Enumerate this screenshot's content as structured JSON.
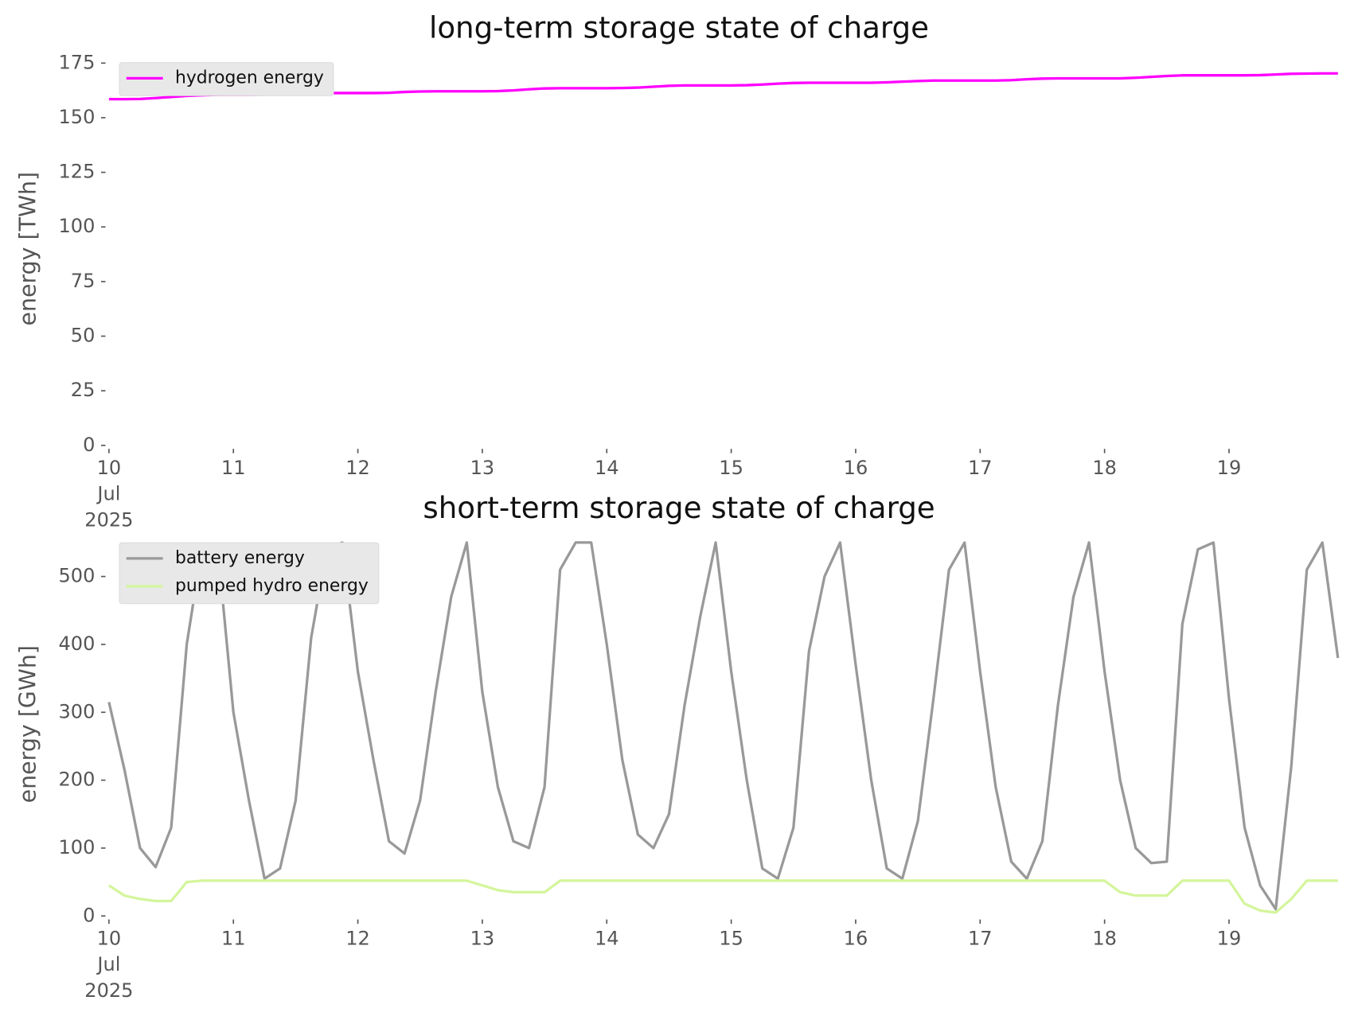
{
  "chart_data": [
    {
      "type": "line",
      "title": "long-term storage state of charge",
      "ylabel": "energy [TWh]",
      "x": [
        10,
        10.125,
        10.25,
        10.375,
        10.5,
        10.625,
        10.75,
        10.875,
        11,
        11.125,
        11.25,
        11.375,
        11.5,
        11.625,
        11.75,
        11.875,
        12,
        12.125,
        12.25,
        12.375,
        12.5,
        12.625,
        12.75,
        12.875,
        13,
        13.125,
        13.25,
        13.375,
        13.5,
        13.625,
        13.75,
        13.875,
        14,
        14.125,
        14.25,
        14.375,
        14.5,
        14.625,
        14.75,
        14.875,
        15,
        15.125,
        15.25,
        15.375,
        15.5,
        15.625,
        15.75,
        15.875,
        16,
        16.125,
        16.25,
        16.375,
        16.5,
        16.625,
        16.75,
        16.875,
        17,
        17.125,
        17.25,
        17.375,
        17.5,
        17.625,
        17.75,
        17.875,
        18,
        18.125,
        18.25,
        18.375,
        18.5,
        18.625,
        18.75,
        18.875,
        19,
        19.125,
        19.25,
        19.375,
        19.5,
        19.625,
        19.75,
        19.875
      ],
      "xlim": [
        10,
        20
      ],
      "xticks": [
        {
          "value": 10,
          "label": "10 Jul 2025"
        },
        11,
        12,
        13,
        14,
        15,
        16,
        17,
        18,
        19
      ],
      "ylim": [
        0,
        180
      ],
      "yticks": [
        0,
        25,
        50,
        75,
        100,
        125,
        150,
        175
      ],
      "legend": "upper left",
      "series": [
        {
          "name": "hydrogen energy",
          "color": "#ff00ff",
          "values": [
            158.5,
            158.5,
            158.6,
            159.0,
            159.5,
            160.0,
            160.3,
            160.5,
            160.5,
            160.5,
            160.6,
            161.0,
            161.2,
            161.3,
            161.3,
            161.3,
            161.3,
            161.3,
            161.4,
            161.8,
            162.0,
            162.1,
            162.1,
            162.1,
            162.1,
            162.2,
            162.5,
            163.0,
            163.4,
            163.5,
            163.5,
            163.5,
            163.5,
            163.6,
            163.8,
            164.2,
            164.6,
            164.8,
            164.8,
            164.8,
            164.8,
            164.9,
            165.2,
            165.6,
            165.9,
            166.0,
            166.0,
            166.0,
            166.0,
            166.0,
            166.2,
            166.5,
            166.8,
            167.0,
            167.0,
            167.0,
            167.0,
            167.0,
            167.2,
            167.6,
            167.9,
            168.0,
            168.0,
            168.0,
            168.0,
            168.0,
            168.3,
            168.7,
            169.1,
            169.4,
            169.4,
            169.4,
            169.4,
            169.4,
            169.5,
            169.8,
            170.1,
            170.2,
            170.3,
            170.3
          ]
        }
      ]
    },
    {
      "type": "line",
      "title": "short-term storage state of charge",
      "ylabel": "energy [GWh]",
      "x": [
        10,
        10.125,
        10.25,
        10.375,
        10.5,
        10.625,
        10.75,
        10.875,
        11,
        11.125,
        11.25,
        11.375,
        11.5,
        11.625,
        11.75,
        11.875,
        12,
        12.125,
        12.25,
        12.375,
        12.5,
        12.625,
        12.75,
        12.875,
        13,
        13.125,
        13.25,
        13.375,
        13.5,
        13.625,
        13.75,
        13.875,
        14,
        14.125,
        14.25,
        14.375,
        14.5,
        14.625,
        14.75,
        14.875,
        15,
        15.125,
        15.25,
        15.375,
        15.5,
        15.625,
        15.75,
        15.875,
        16,
        16.125,
        16.25,
        16.375,
        16.5,
        16.625,
        16.75,
        16.875,
        17,
        17.125,
        17.25,
        17.375,
        17.5,
        17.625,
        17.75,
        17.875,
        18,
        18.125,
        18.25,
        18.375,
        18.5,
        18.625,
        18.75,
        18.875,
        19,
        19.125,
        19.25,
        19.375,
        19.5,
        19.625,
        19.75,
        19.875
      ],
      "xlim": [
        10,
        20
      ],
      "xticks": [
        {
          "value": 10,
          "label": "10 Jul 2025"
        },
        11,
        12,
        13,
        14,
        15,
        16,
        17,
        18,
        19
      ],
      "ylim": [
        0,
        565
      ],
      "yticks": [
        0,
        100,
        200,
        300,
        400,
        500
      ],
      "legend": "upper left",
      "series": [
        {
          "name": "battery energy",
          "color": "#999999",
          "values": [
            315,
            215,
            100,
            72,
            130,
            400,
            545,
            540,
            300,
            170,
            55,
            70,
            170,
            410,
            540,
            550,
            360,
            230,
            110,
            92,
            170,
            330,
            470,
            550,
            330,
            190,
            110,
            100,
            190,
            510,
            550,
            550,
            400,
            230,
            120,
            100,
            150,
            310,
            440,
            550,
            360,
            200,
            70,
            55,
            130,
            390,
            500,
            550,
            370,
            200,
            70,
            55,
            140,
            320,
            510,
            550,
            360,
            190,
            80,
            55,
            110,
            310,
            470,
            550,
            360,
            200,
            100,
            78,
            80,
            430,
            540,
            550,
            320,
            130,
            45,
            10,
            220,
            510,
            550,
            380
          ]
        },
        {
          "name": "pumped hydro energy",
          "color": "#d4f59c",
          "values": [
            45,
            30,
            25,
            22,
            22,
            50,
            52,
            52,
            52,
            52,
            52,
            52,
            52,
            52,
            52,
            52,
            52,
            52,
            52,
            52,
            52,
            52,
            52,
            52,
            45,
            38,
            35,
            35,
            35,
            52,
            52,
            52,
            52,
            52,
            52,
            52,
            52,
            52,
            52,
            52,
            52,
            52,
            52,
            52,
            52,
            52,
            52,
            52,
            52,
            52,
            52,
            52,
            52,
            52,
            52,
            52,
            52,
            52,
            52,
            52,
            52,
            52,
            52,
            52,
            52,
            35,
            30,
            30,
            30,
            52,
            52,
            52,
            52,
            18,
            8,
            5,
            25,
            52,
            52,
            52
          ]
        }
      ]
    }
  ]
}
